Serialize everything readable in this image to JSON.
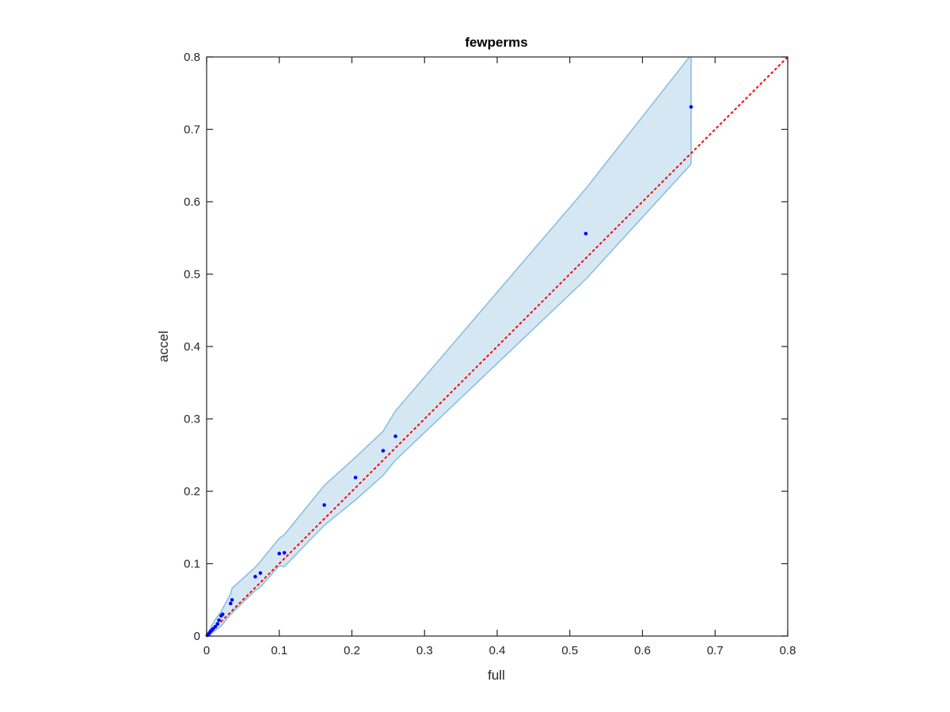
{
  "chart_data": {
    "type": "scatter",
    "title": "fewperms",
    "xlabel": "full",
    "ylabel": "accel",
    "xlim": [
      0,
      0.8
    ],
    "ylim": [
      0,
      0.8
    ],
    "xticks": [
      "0",
      "0.1",
      "0.2",
      "0.3",
      "0.4",
      "0.5",
      "0.6",
      "0.7",
      "0.8"
    ],
    "yticks": [
      "0",
      "0.1",
      "0.2",
      "0.3",
      "0.4",
      "0.5",
      "0.6",
      "0.7",
      "0.8"
    ],
    "grid": false,
    "colors": {
      "points": "#0000ff",
      "reference_line": "#ff0000",
      "band_fill": "#d6e7f4",
      "band_edge": "#8bbfe0",
      "axes": "#262626"
    },
    "points": [
      {
        "x": 0.001,
        "y": 0.001
      },
      {
        "x": 0.002,
        "y": 0.002
      },
      {
        "x": 0.003,
        "y": 0.003
      },
      {
        "x": 0.004,
        "y": 0.004
      },
      {
        "x": 0.005,
        "y": 0.006
      },
      {
        "x": 0.007,
        "y": 0.008
      },
      {
        "x": 0.009,
        "y": 0.01
      },
      {
        "x": 0.012,
        "y": 0.013
      },
      {
        "x": 0.015,
        "y": 0.017
      },
      {
        "x": 0.017,
        "y": 0.022
      },
      {
        "x": 0.02,
        "y": 0.028
      },
      {
        "x": 0.022,
        "y": 0.03
      },
      {
        "x": 0.033,
        "y": 0.045
      },
      {
        "x": 0.035,
        "y": 0.05
      },
      {
        "x": 0.067,
        "y": 0.082
      },
      {
        "x": 0.074,
        "y": 0.087
      },
      {
        "x": 0.1,
        "y": 0.114
      },
      {
        "x": 0.107,
        "y": 0.115
      },
      {
        "x": 0.162,
        "y": 0.181
      },
      {
        "x": 0.205,
        "y": 0.219
      },
      {
        "x": 0.243,
        "y": 0.256
      },
      {
        "x": 0.26,
        "y": 0.276
      },
      {
        "x": 0.522,
        "y": 0.556
      },
      {
        "x": 0.667,
        "y": 0.731
      }
    ],
    "band_upper": [
      {
        "x": 0.0,
        "y": 0.0
      },
      {
        "x": 0.005,
        "y": 0.01
      },
      {
        "x": 0.01,
        "y": 0.02
      },
      {
        "x": 0.02,
        "y": 0.034
      },
      {
        "x": 0.033,
        "y": 0.058
      },
      {
        "x": 0.035,
        "y": 0.066
      },
      {
        "x": 0.067,
        "y": 0.095
      },
      {
        "x": 0.074,
        "y": 0.103
      },
      {
        "x": 0.1,
        "y": 0.135
      },
      {
        "x": 0.107,
        "y": 0.14
      },
      {
        "x": 0.162,
        "y": 0.208
      },
      {
        "x": 0.205,
        "y": 0.247
      },
      {
        "x": 0.243,
        "y": 0.283
      },
      {
        "x": 0.26,
        "y": 0.311
      },
      {
        "x": 0.522,
        "y": 0.618
      },
      {
        "x": 0.667,
        "y": 0.803
      }
    ],
    "band_lower": [
      {
        "x": 0.0,
        "y": 0.0
      },
      {
        "x": 0.01,
        "y": 0.006
      },
      {
        "x": 0.02,
        "y": 0.014
      },
      {
        "x": 0.033,
        "y": 0.03
      },
      {
        "x": 0.067,
        "y": 0.063
      },
      {
        "x": 0.074,
        "y": 0.068
      },
      {
        "x": 0.1,
        "y": 0.097
      },
      {
        "x": 0.107,
        "y": 0.096
      },
      {
        "x": 0.162,
        "y": 0.153
      },
      {
        "x": 0.205,
        "y": 0.188
      },
      {
        "x": 0.243,
        "y": 0.222
      },
      {
        "x": 0.26,
        "y": 0.243
      },
      {
        "x": 0.522,
        "y": 0.493
      },
      {
        "x": 0.667,
        "y": 0.652
      }
    ],
    "reference_line": {
      "style": "dotted",
      "from": {
        "x": 0,
        "y": 0
      },
      "to": {
        "x": 0.8,
        "y": 0.8
      }
    }
  }
}
